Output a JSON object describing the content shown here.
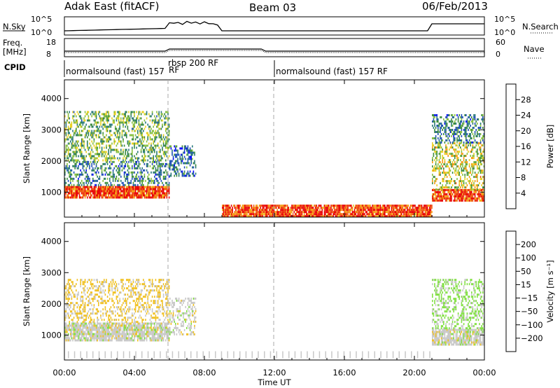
{
  "header": {
    "title_left": "Adak East (fitACF)",
    "title_center": "Beam 03",
    "title_right": "06/Feb/2013"
  },
  "status_panel": {
    "nsky_label": "N.Sky",
    "nsky_ticks": [
      "10^5",
      "10^0"
    ],
    "nsearch_label": "N.Search",
    "nsearch_ticks": [
      "10^5",
      "10^0"
    ],
    "freq_label": "Freq.",
    "freq_unit": "[MHz]",
    "freq_ticks": [
      "18",
      "8"
    ],
    "nave_label": "Nave",
    "nave_ticks": [
      "60",
      "0"
    ],
    "cpid_label": "CPID",
    "cpid_segments": [
      {
        "label": "normalsound (fast) 157",
        "start_hr": 0.0,
        "end_hr": 6.0
      },
      {
        "label": "RF",
        "start_hr": 6.0,
        "end_hr": 6.2
      },
      {
        "label": "rbsp 200 RF",
        "start_hr": 6.0,
        "end_hr": 12.0
      },
      {
        "label": "normalsound (fast) 157 RF",
        "start_hr": 12.0,
        "end_hr": 24.0
      }
    ]
  },
  "axes": {
    "ylabel": "Slant Range [km]",
    "xlabel": "Time UT",
    "yticks": [
      "1000",
      "2000",
      "3000",
      "4000"
    ],
    "xticks": [
      "00:00",
      "04:00",
      "08:00",
      "12:00",
      "16:00",
      "20:00",
      "00:00"
    ]
  },
  "colorbars": {
    "power": {
      "label": "Power [dB]",
      "ticks": [
        "28",
        "24",
        "20",
        "16",
        "12",
        "8",
        "4"
      ],
      "colors": [
        "#0000ff",
        "#1f4fb8",
        "#2a7a7a",
        "#3c8c3c",
        "#88c040",
        "#e8d020",
        "#f59a10",
        "#f05a10",
        "#e80000"
      ]
    },
    "velocity": {
      "label": "Velocity [m s⁻¹]",
      "ticks": [
        "200",
        "100",
        "50",
        "15",
        "−15",
        "−50",
        "−100",
        "−200"
      ],
      "colors": [
        "#1a3fb0",
        "#2a7080",
        "#40a040",
        "#80e040",
        "#c8c8c8",
        "#f0c020",
        "#f09010",
        "#f05010",
        "#e80000"
      ]
    }
  },
  "chart_data": [
    {
      "type": "heatmap",
      "name": "power",
      "x_range_hr": [
        0,
        24
      ],
      "y_range_km": [
        200,
        4600
      ],
      "colorbar_range_db": [
        0,
        32
      ],
      "regions": [
        {
          "t0": 0.0,
          "t1": 6.0,
          "r0": 800,
          "r1": 1200,
          "value_db": 28
        },
        {
          "t0": 0.0,
          "t1": 6.0,
          "r0": 1200,
          "r1": 2000,
          "value_db": 10
        },
        {
          "t0": 0.0,
          "t1": 6.0,
          "r0": 2000,
          "r1": 3600,
          "value_db": 14
        },
        {
          "t0": 6.0,
          "t1": 7.5,
          "r0": 1500,
          "r1": 2500,
          "value_db": 8
        },
        {
          "t0": 9.0,
          "t1": 21.0,
          "r0": 200,
          "r1": 600,
          "value_db": 28
        },
        {
          "t0": 21.0,
          "t1": 24.0,
          "r0": 700,
          "r1": 1100,
          "value_db": 28
        },
        {
          "t0": 21.0,
          "t1": 24.0,
          "r0": 1100,
          "r1": 2600,
          "value_db": 18
        },
        {
          "t0": 21.0,
          "t1": 24.0,
          "r0": 2600,
          "r1": 3500,
          "value_db": 10
        }
      ]
    },
    {
      "type": "heatmap",
      "name": "velocity",
      "x_range_hr": [
        0,
        24
      ],
      "y_range_km": [
        200,
        4600
      ],
      "colorbar_range_ms": [
        -200,
        200
      ],
      "regions": [
        {
          "t0": 0.0,
          "t1": 6.0,
          "r0": 800,
          "r1": 1400,
          "value_ms": 0
        },
        {
          "t0": 0.0,
          "t1": 6.0,
          "r0": 1400,
          "r1": 2800,
          "value_ms": -30
        },
        {
          "t0": 6.0,
          "t1": 7.5,
          "r0": 1000,
          "r1": 2200,
          "value_ms": 0
        },
        {
          "t0": 21.0,
          "t1": 24.0,
          "r0": 700,
          "r1": 1200,
          "value_ms": 0
        },
        {
          "t0": 21.0,
          "t1": 24.0,
          "r0": 1200,
          "r1": 2800,
          "value_ms": 30
        }
      ]
    }
  ]
}
